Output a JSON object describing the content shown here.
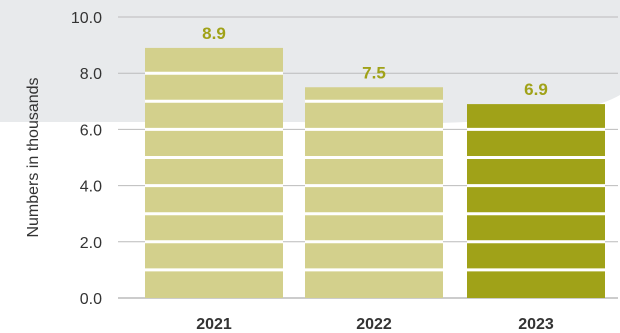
{
  "chart_data": {
    "type": "bar",
    "title": "",
    "xlabel": "",
    "ylabel": "Numbers in thousands",
    "categories": [
      "2021",
      "2022",
      "2023"
    ],
    "values": [
      8.9,
      7.5,
      6.9
    ],
    "data_labels": [
      "8.9",
      "7.5",
      "6.9"
    ],
    "y_ticks": [
      "0.0",
      "2.0",
      "4.0",
      "6.0",
      "8.0",
      "10.0"
    ],
    "ylim": [
      0,
      10
    ],
    "grid": true,
    "legend": "none",
    "highlight_index": 2,
    "colors": {
      "bar": "#d3d08c",
      "highlight": "#a0a218",
      "label": "#a0a218",
      "gridline": "#bbbbbb",
      "background_band": "#e8eaec"
    }
  }
}
